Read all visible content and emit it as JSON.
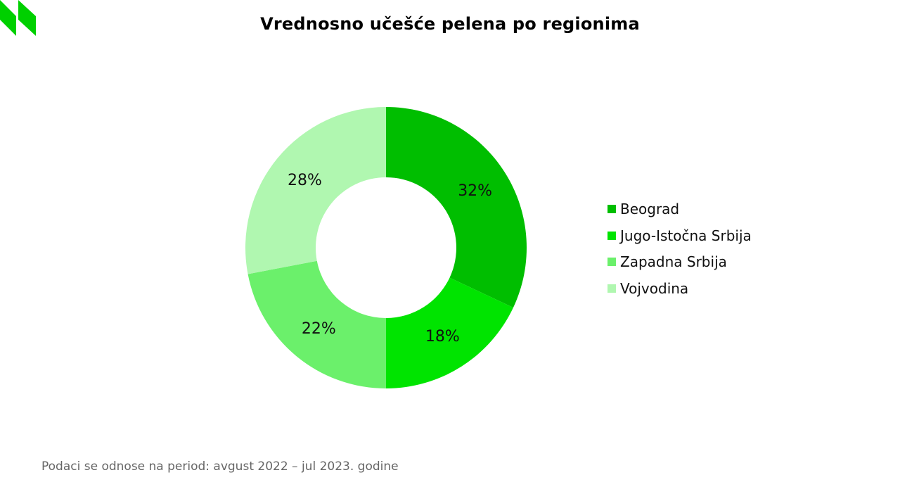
{
  "chart_data": {
    "type": "pie",
    "title": "Vrednosno učešće pelena po regionima",
    "categories": [
      "Beograd",
      "Jugo-Istočna Srbija",
      "Zapadna Srbija",
      "Vojvodina"
    ],
    "values": [
      32,
      18,
      22,
      28
    ],
    "value_labels": [
      "32%",
      "18%",
      "22%",
      "28%"
    ],
    "unit": "%",
    "donut": true,
    "colors": [
      "#00BE00",
      "#00E400",
      "#6BF06B",
      "#B0F7B0"
    ],
    "legend_position": "right"
  },
  "footnote": "Podaci se odnose na period: avgust 2022 – jul 2023. godine"
}
